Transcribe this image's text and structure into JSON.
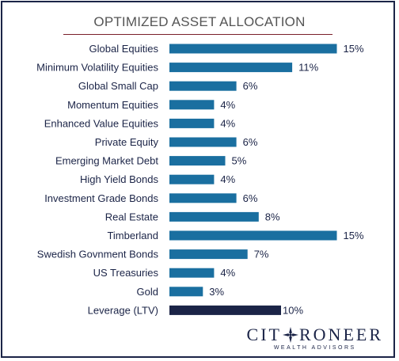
{
  "logo": {
    "text_left": "CIT",
    "text_right": "RONEER",
    "subtitle": "WEALTH ADVISORS",
    "mark_icon": "compass-star-icon"
  },
  "colors": {
    "bar": "#1a6fa0",
    "leverage_bar": "#1b2447",
    "text": "#1b2447",
    "title": "#555555",
    "frame": "#1b2447"
  },
  "chart_data": {
    "type": "bar",
    "orientation": "horizontal",
    "title": "OPTIMIZED ASSET ALLOCATION",
    "categories": [
      "Global Equities",
      "Minimum Volatility Equities",
      "Global Small Cap",
      "Momentum Equities",
      "Enhanced Value Equities",
      "Private Equity",
      "Emerging Market Debt",
      "High Yield Bonds",
      "Investment Grade Bonds",
      "Real Estate",
      "Timberland",
      "Swedish Govnment Bonds",
      "US Treasuries",
      "Gold",
      "Leverage (LTV)"
    ],
    "values": [
      15,
      11,
      6,
      4,
      4,
      6,
      5,
      4,
      6,
      8,
      15,
      7,
      4,
      3,
      10
    ],
    "value_labels": [
      "15%",
      "11%",
      "6%",
      "4%",
      "4%",
      "6%",
      "5%",
      "4%",
      "6%",
      "8%",
      "15%",
      "7%",
      "4%",
      "3%",
      "10%"
    ],
    "highlight_category": "Leverage (LTV)",
    "xlim": [
      0,
      15
    ],
    "grid": false,
    "legend": "none"
  }
}
